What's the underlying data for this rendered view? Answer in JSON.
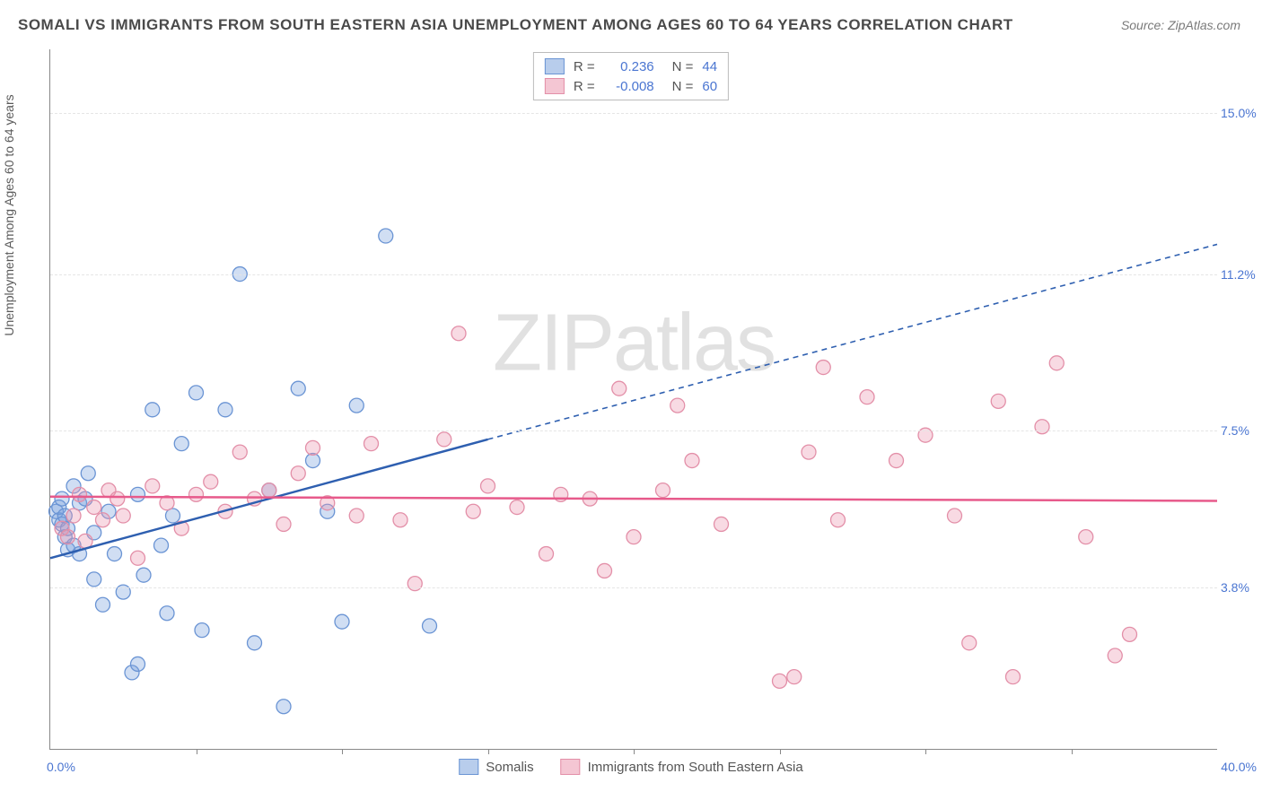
{
  "title": "SOMALI VS IMMIGRANTS FROM SOUTH EASTERN ASIA UNEMPLOYMENT AMONG AGES 60 TO 64 YEARS CORRELATION CHART",
  "source": "Source: ZipAtlas.com",
  "ylabel": "Unemployment Among Ages 60 to 64 years",
  "watermark_prefix": "ZIP",
  "watermark_suffix": "atlas",
  "chart": {
    "type": "scatter",
    "xlim": [
      0,
      40
    ],
    "ylim": [
      0,
      16.5
    ],
    "xlim_labels": [
      "0.0%",
      "40.0%"
    ],
    "y_ticks": [
      3.8,
      7.5,
      11.2,
      15.0
    ],
    "y_tick_labels": [
      "3.8%",
      "7.5%",
      "11.2%",
      "15.0%"
    ],
    "x_tick_positions": [
      5,
      10,
      15,
      20,
      25,
      30,
      35
    ],
    "background_color": "#ffffff",
    "grid_color": "#e5e5e5",
    "axis_color": "#888888",
    "marker_radius": 8,
    "marker_stroke_width": 1.3,
    "series": [
      {
        "name": "Somalis",
        "label": "Somalis",
        "fill_color": "rgba(120,160,220,0.35)",
        "stroke_color": "#6a94d4",
        "swatch_fill": "#b8cdec",
        "swatch_border": "#6a94d4",
        "R": "0.236",
        "N": "44",
        "regression": {
          "solid": {
            "x1": 0,
            "y1": 4.5,
            "x2": 15,
            "y2": 7.3
          },
          "dashed": {
            "x1": 15,
            "y1": 7.3,
            "x2": 40,
            "y2": 11.9
          }
        },
        "line_color": "#2e5fb0",
        "line_width": 2.5,
        "points": [
          [
            0.2,
            5.6
          ],
          [
            0.3,
            5.4
          ],
          [
            0.3,
            5.7
          ],
          [
            0.4,
            5.3
          ],
          [
            0.4,
            5.9
          ],
          [
            0.5,
            5.0
          ],
          [
            0.5,
            5.5
          ],
          [
            0.6,
            4.7
          ],
          [
            0.6,
            5.2
          ],
          [
            0.8,
            4.8
          ],
          [
            0.8,
            6.2
          ],
          [
            1.0,
            5.8
          ],
          [
            1.0,
            4.6
          ],
          [
            1.2,
            5.9
          ],
          [
            1.3,
            6.5
          ],
          [
            1.5,
            4.0
          ],
          [
            1.5,
            5.1
          ],
          [
            1.8,
            3.4
          ],
          [
            2.0,
            5.6
          ],
          [
            2.2,
            4.6
          ],
          [
            2.5,
            3.7
          ],
          [
            2.8,
            1.8
          ],
          [
            3.0,
            6.0
          ],
          [
            3.0,
            2.0
          ],
          [
            3.2,
            4.1
          ],
          [
            3.5,
            8.0
          ],
          [
            3.8,
            4.8
          ],
          [
            4.0,
            3.2
          ],
          [
            4.2,
            5.5
          ],
          [
            4.5,
            7.2
          ],
          [
            5.0,
            8.4
          ],
          [
            5.2,
            2.8
          ],
          [
            6.0,
            8.0
          ],
          [
            6.5,
            11.2
          ],
          [
            7.0,
            2.5
          ],
          [
            7.5,
            6.1
          ],
          [
            8.0,
            1.0
          ],
          [
            8.5,
            8.5
          ],
          [
            9.0,
            6.8
          ],
          [
            9.5,
            5.6
          ],
          [
            10.0,
            3.0
          ],
          [
            10.5,
            8.1
          ],
          [
            11.5,
            12.1
          ],
          [
            13.0,
            2.9
          ]
        ]
      },
      {
        "name": "Immigrants from South Eastern Asia",
        "label": "Immigrants from South Eastern Asia",
        "fill_color": "rgba(235,150,175,0.35)",
        "stroke_color": "#e38fa8",
        "swatch_fill": "#f4c6d3",
        "swatch_border": "#e38fa8",
        "R": "-0.008",
        "N": "60",
        "regression": {
          "solid": {
            "x1": 0,
            "y1": 5.95,
            "x2": 40,
            "y2": 5.85
          }
        },
        "line_color": "#e75a8b",
        "line_width": 2.5,
        "points": [
          [
            0.4,
            5.2
          ],
          [
            0.6,
            5.0
          ],
          [
            0.8,
            5.5
          ],
          [
            1.0,
            6.0
          ],
          [
            1.2,
            4.9
          ],
          [
            1.5,
            5.7
          ],
          [
            1.8,
            5.4
          ],
          [
            2.0,
            6.1
          ],
          [
            2.3,
            5.9
          ],
          [
            2.5,
            5.5
          ],
          [
            3.0,
            4.5
          ],
          [
            3.5,
            6.2
          ],
          [
            4.0,
            5.8
          ],
          [
            4.5,
            5.2
          ],
          [
            5.0,
            6.0
          ],
          [
            5.5,
            6.3
          ],
          [
            6.0,
            5.6
          ],
          [
            6.5,
            7.0
          ],
          [
            7.0,
            5.9
          ],
          [
            7.5,
            6.1
          ],
          [
            8.0,
            5.3
          ],
          [
            8.5,
            6.5
          ],
          [
            9.0,
            7.1
          ],
          [
            9.5,
            5.8
          ],
          [
            10.5,
            5.5
          ],
          [
            11.0,
            7.2
          ],
          [
            12.0,
            5.4
          ],
          [
            12.5,
            3.9
          ],
          [
            13.5,
            7.3
          ],
          [
            14.0,
            9.8
          ],
          [
            14.5,
            5.6
          ],
          [
            15.0,
            6.2
          ],
          [
            16.0,
            5.7
          ],
          [
            17.0,
            4.6
          ],
          [
            17.5,
            6.0
          ],
          [
            18.5,
            5.9
          ],
          [
            19.0,
            4.2
          ],
          [
            19.5,
            8.5
          ],
          [
            20.0,
            5.0
          ],
          [
            21.0,
            6.1
          ],
          [
            21.5,
            8.1
          ],
          [
            22.0,
            6.8
          ],
          [
            23.0,
            5.3
          ],
          [
            25.0,
            1.6
          ],
          [
            25.5,
            1.7
          ],
          [
            26.0,
            7.0
          ],
          [
            26.5,
            9.0
          ],
          [
            27.0,
            5.4
          ],
          [
            28.0,
            8.3
          ],
          [
            29.0,
            6.8
          ],
          [
            30.0,
            7.4
          ],
          [
            31.0,
            5.5
          ],
          [
            31.5,
            2.5
          ],
          [
            32.5,
            8.2
          ],
          [
            33.0,
            1.7
          ],
          [
            34.0,
            7.6
          ],
          [
            34.5,
            9.1
          ],
          [
            35.5,
            5.0
          ],
          [
            36.5,
            2.2
          ],
          [
            37.0,
            2.7
          ]
        ]
      }
    ]
  },
  "legend_top": {
    "r_label": "R =",
    "n_label": "N ="
  },
  "text_color_value": "#4a75d1",
  "text_color_label": "#555555"
}
